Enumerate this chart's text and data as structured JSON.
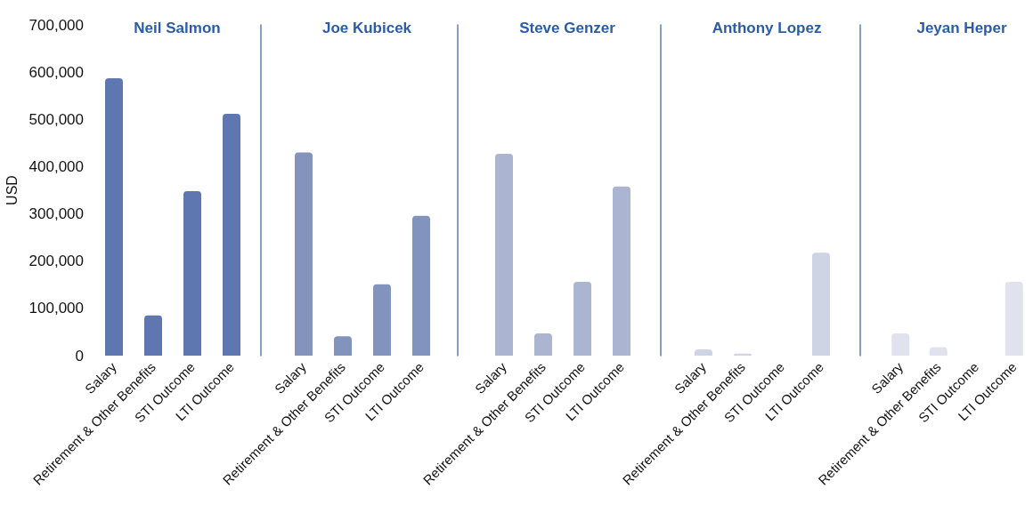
{
  "chart_data": [
    {
      "type": "bar",
      "title": "Neil Salmon",
      "ylabel": "USD",
      "categories": [
        "Salary",
        "Retirement & Other Benefits",
        "STI Outcome",
        "LTI Outcome"
      ],
      "values": [
        587000,
        85000,
        348000,
        512000
      ],
      "color": "#5e77b1",
      "ylim": [
        0,
        700000
      ],
      "yticks": [
        {
          "value": 0,
          "label": "0"
        },
        {
          "value": 100000,
          "label": "100,000"
        },
        {
          "value": 200000,
          "label": "200,000"
        },
        {
          "value": 300000,
          "label": "300,000"
        },
        {
          "value": 400000,
          "label": "400,000"
        },
        {
          "value": 500000,
          "label": "500,000"
        },
        {
          "value": 600000,
          "label": "600,000"
        },
        {
          "value": 700000,
          "label": "700,000"
        }
      ],
      "grid": false
    },
    {
      "type": "bar",
      "title": "Joe Kubicek",
      "categories": [
        "Salary",
        "Retirement & Other Benefits",
        "STI Outcome",
        "LTI Outcome"
      ],
      "values": [
        430000,
        41000,
        151000,
        296000
      ],
      "color": "#8293bd",
      "ylim": [
        0,
        700000
      ],
      "tick_labels": "x",
      "grid": false
    },
    {
      "type": "bar",
      "title": "Steve Genzer",
      "categories": [
        "Salary",
        "Retirement & Other Benefits",
        "STI Outcome",
        "LTI Outcome"
      ],
      "values": [
        427000,
        47000,
        156000,
        358000
      ],
      "color": "#abb5d1",
      "ylim": [
        0,
        700000
      ],
      "tick_labels": "x",
      "grid": false
    },
    {
      "type": "bar",
      "title": "Anthony Lopez",
      "categories": [
        "Salary",
        "Retirement & Other Benefits",
        "STI Outcome",
        "LTI Outcome"
      ],
      "values": [
        13000,
        4000,
        0,
        218000
      ],
      "color": "#cfd4e4",
      "ylim": [
        0,
        700000
      ],
      "tick_labels": "x",
      "grid": false
    },
    {
      "type": "bar",
      "title": "Jeyan Heper",
      "categories": [
        "Salary",
        "Retirement & Other Benefits",
        "STI Outcome",
        "LTI Outcome"
      ],
      "values": [
        47000,
        18000,
        0,
        156000
      ],
      "color": "#e0e3ee",
      "ylim": [
        0,
        700000
      ],
      "tick_labels": "x",
      "grid": false
    }
  ]
}
